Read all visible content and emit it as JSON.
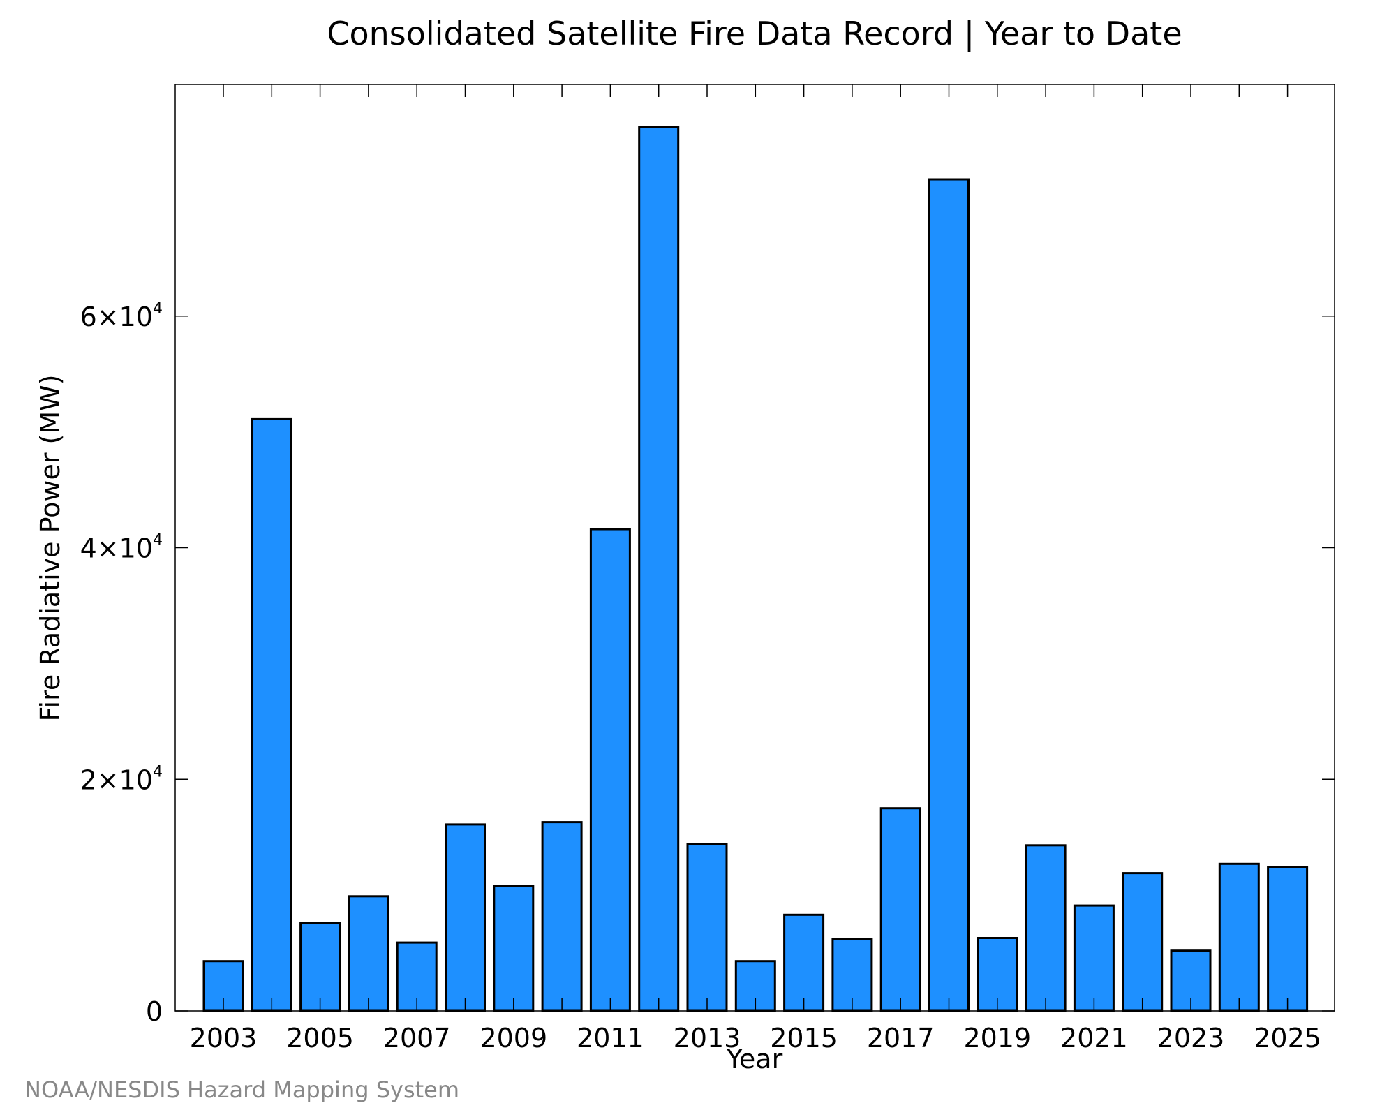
{
  "chart_data": {
    "type": "bar",
    "title": "Consolidated Satellite Fire Data Record | Year to Date",
    "xlabel": "Year",
    "ylabel": "Fire Radiative Power (MW)",
    "credit": "NOAA/NESDIS Hazard Mapping System",
    "bar_color": "#1E90FF",
    "bar_edge_color": "#000000",
    "ylim": [
      0,
      80000
    ],
    "yticks": [
      {
        "value": 0,
        "mantissa": "0",
        "exp": ""
      },
      {
        "value": 20000,
        "mantissa": "2×10",
        "exp": "4"
      },
      {
        "value": 40000,
        "mantissa": "4×10",
        "exp": "4"
      },
      {
        "value": 60000,
        "mantissa": "6×10",
        "exp": "4"
      }
    ],
    "xtick_labels": [
      "2003",
      "2005",
      "2007",
      "2009",
      "2011",
      "2013",
      "2015",
      "2017",
      "2019",
      "2021",
      "2023",
      "2025"
    ],
    "grid": false,
    "x": [
      2003,
      2004,
      2005,
      2006,
      2007,
      2008,
      2009,
      2010,
      2011,
      2012,
      2013,
      2014,
      2015,
      2016,
      2017,
      2018,
      2019,
      2020,
      2021,
      2022,
      2023,
      2024,
      2025
    ],
    "values": [
      4300,
      51100,
      7600,
      9900,
      5900,
      16100,
      10800,
      16300,
      41600,
      76300,
      14400,
      4300,
      8300,
      6200,
      17500,
      71800,
      6300,
      14300,
      9100,
      11900,
      5200,
      12700,
      12400
    ]
  }
}
